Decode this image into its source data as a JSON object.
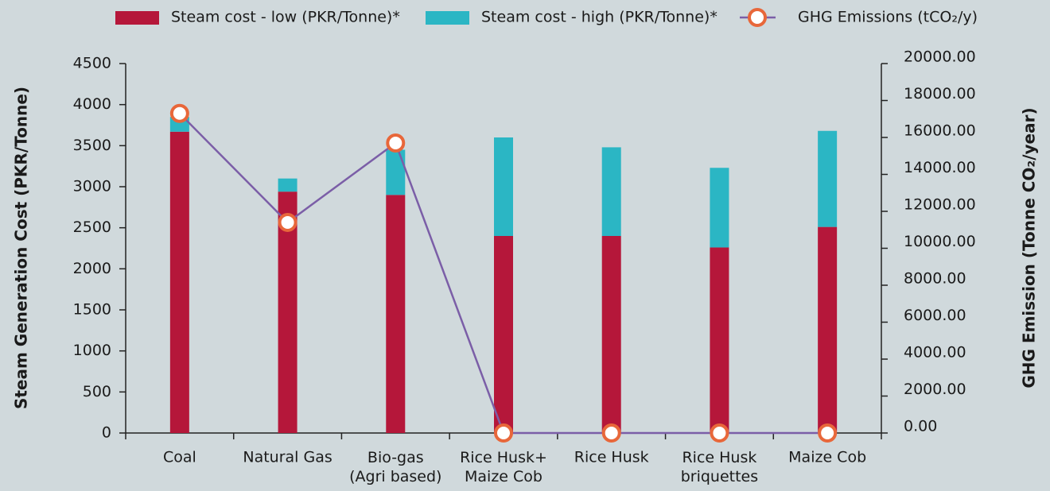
{
  "chart_data": {
    "type": "bar",
    "categories": [
      "Coal",
      "Natural Gas",
      "Bio-gas\n(Agri based)",
      "Rice Husk+\nMaize Cob",
      "Rice Husk",
      "Rice Husk\nbriquettes",
      "Maize Cob"
    ],
    "series": [
      {
        "name": "Steam cost - low (PKR/Tonne)*",
        "color": "#b5173a",
        "type": "bar",
        "values": [
          3670,
          2940,
          2900,
          2400,
          2400,
          2260,
          2510
        ]
      },
      {
        "name": "Steam cost - high (PKR/Tonne)*",
        "color": "#2bb6c4",
        "type": "bar",
        "values": [
          180,
          160,
          550,
          1200,
          1080,
          970,
          1170
        ]
      },
      {
        "name": "GHG Emissions (tCO₂/y)",
        "color": "#7b5ea7",
        "marker_color": "#e8673a",
        "type": "line",
        "axis": "y2",
        "values": [
          17300,
          11400,
          15700,
          0,
          0,
          0,
          0
        ]
      }
    ],
    "stacked": true,
    "y_label": "Steam Generation Cost (PKR/Tonne)",
    "y2_label": "GHG Emission (Tonne CO₂/year)",
    "ylim": [
      0,
      4500
    ],
    "yticks": [
      0,
      500,
      1000,
      1500,
      2000,
      2500,
      3000,
      3500,
      4000,
      4500
    ],
    "y2lim": [
      0,
      20000
    ],
    "y2ticks": [
      {
        "value": 0,
        "label": "0.00"
      },
      {
        "value": 2000,
        "label": "2000.00"
      },
      {
        "value": 4000,
        "label": "4000.00"
      },
      {
        "value": 6000,
        "label": "6000.00"
      },
      {
        "value": 8000,
        "label": "8000.00"
      },
      {
        "value": 10000,
        "label": "10000.00"
      },
      {
        "value": 12000,
        "label": "12000.00"
      },
      {
        "value": 14000,
        "label": "14000.00"
      },
      {
        "value": 16000,
        "label": "16000.00"
      },
      {
        "value": 18000,
        "label": "18000.00"
      },
      {
        "value": 20000,
        "label": "20000.00"
      }
    ],
    "grid": false,
    "legend": "top"
  }
}
